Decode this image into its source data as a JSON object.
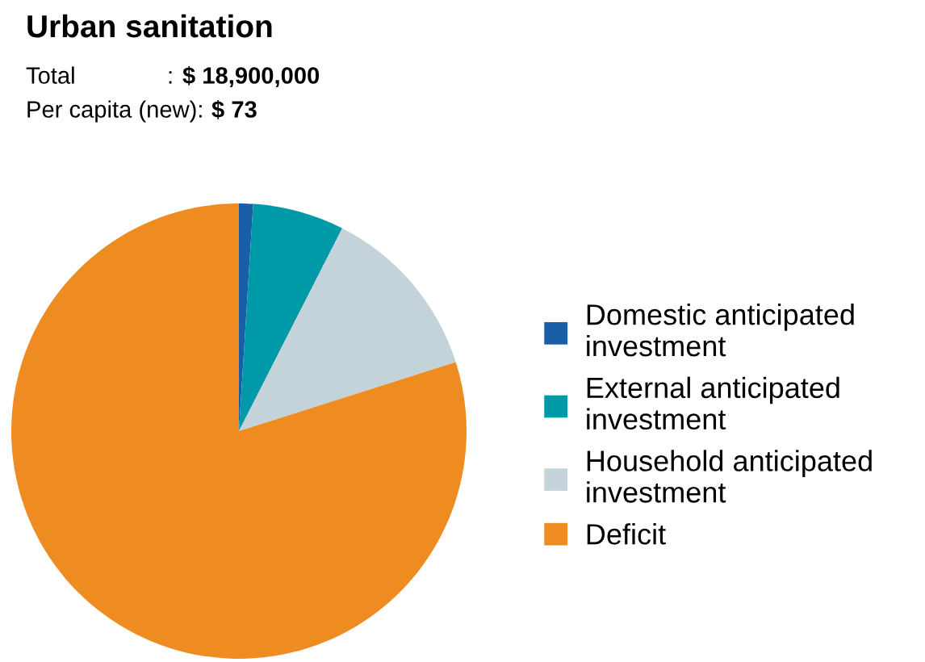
{
  "chart_data": {
    "type": "pie",
    "title": "Urban sanitation",
    "annotations": [
      "Total              : $ 18,900,000",
      "Per capita (new): $ 73"
    ],
    "categories": [
      "Domestic anticipated investment",
      "External anticipated investment",
      "Household anticipated investment",
      "Deficit"
    ],
    "values": [
      1,
      6.5,
      12.6,
      79.9
    ],
    "colors": [
      "#1a5ea8",
      "#0099a8",
      "#c4d3d9",
      "#ee8b21"
    ],
    "legend": "right"
  }
}
